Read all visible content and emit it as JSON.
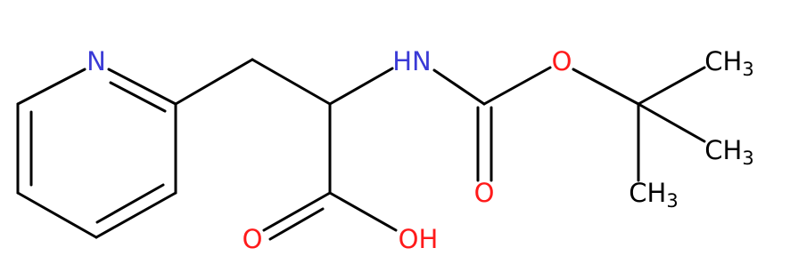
{
  "atoms": [
    {
      "label": "N"
    },
    {
      "label": "HN"
    },
    {
      "label": "O"
    },
    {
      "label": "O"
    },
    {
      "label": "O"
    },
    {
      "label": "OH"
    },
    {
      "main": "CH",
      "sub": "3"
    },
    {
      "main": "CH",
      "sub": "3"
    },
    {
      "main": "CH",
      "sub": "3"
    }
  ]
}
